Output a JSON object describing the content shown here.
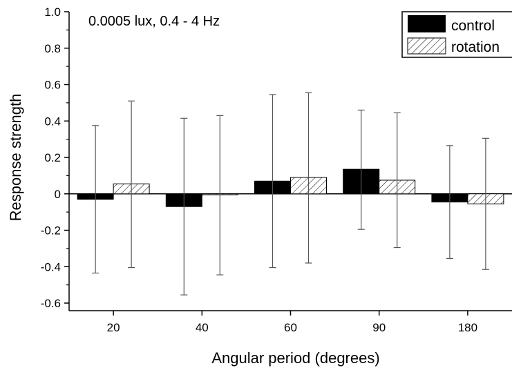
{
  "chart_data": {
    "type": "bar",
    "annotation": "0.0005 lux, 0.4 - 4 Hz",
    "xlabel": "Angular period (degrees)",
    "ylabel": "Response strength",
    "categories": [
      "20",
      "40",
      "60",
      "90",
      "180"
    ],
    "series": [
      {
        "name": "control",
        "values": [
          -0.03,
          -0.07,
          0.07,
          0.135,
          -0.045
        ],
        "err_upper": [
          0.375,
          0.415,
          0.545,
          0.46,
          0.265
        ],
        "err_lower": [
          -0.435,
          -0.555,
          -0.405,
          -0.195,
          -0.355
        ]
      },
      {
        "name": "rotation",
        "values": [
          0.055,
          -0.005,
          0.09,
          0.075,
          -0.055
        ],
        "err_upper": [
          0.51,
          0.43,
          0.555,
          0.445,
          0.305
        ],
        "err_lower": [
          -0.405,
          -0.445,
          -0.38,
          -0.295,
          -0.415
        ]
      }
    ],
    "ylim": [
      -0.6,
      1.0
    ],
    "yticks": [
      "1.0",
      "0.8",
      "0.6",
      "0.4",
      "0.2",
      "0",
      "-0.2",
      "-0.4",
      "-0.6"
    ],
    "ytick_values": [
      1.0,
      0.8,
      0.6,
      0.4,
      0.2,
      0,
      -0.2,
      -0.4,
      -0.6
    ],
    "legend_position": "top-right",
    "grid": false,
    "colors": {
      "control": "#000000",
      "rotation_hatch": "#000000",
      "errorbar": "#555555"
    }
  }
}
